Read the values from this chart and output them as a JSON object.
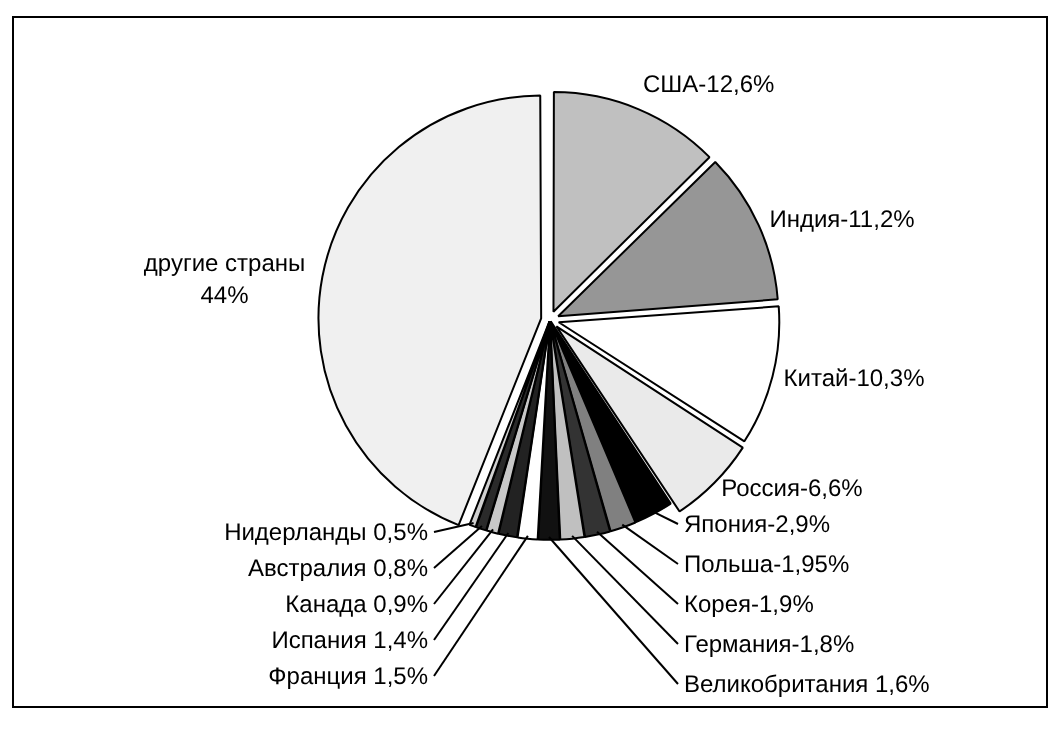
{
  "chart_data": {
    "type": "pie",
    "categories": [
      "США-12,6%",
      "Индия-11,2%",
      "Китай-10,3%",
      "Россия-6,6%",
      "Япония-2,9%",
      "Польша-1,95%",
      "Корея-1,9%",
      "Германия-1,8%",
      "Великобритания 1,6%",
      "Франция 1,5%",
      "Испания 1,4%",
      "Канада 0,9%",
      "Австралия 0,8%",
      "Нидерланды 0,5%",
      "другие страны 44%"
    ],
    "values": [
      12.6,
      11.2,
      10.3,
      6.6,
      2.9,
      1.95,
      1.9,
      1.8,
      1.6,
      1.5,
      1.4,
      0.9,
      0.8,
      0.5,
      44
    ],
    "colors": [
      "#c0c0c0",
      "#969696",
      "#ffffff",
      "#eaeaea",
      "#000000",
      "#808080",
      "#333333",
      "#c0c0c0",
      "#111111",
      "#ffffff",
      "#222222",
      "#c8c8c8",
      "#2a2a2a",
      "#d0d0d0",
      "#f0f0f0"
    ],
    "legend": false
  }
}
